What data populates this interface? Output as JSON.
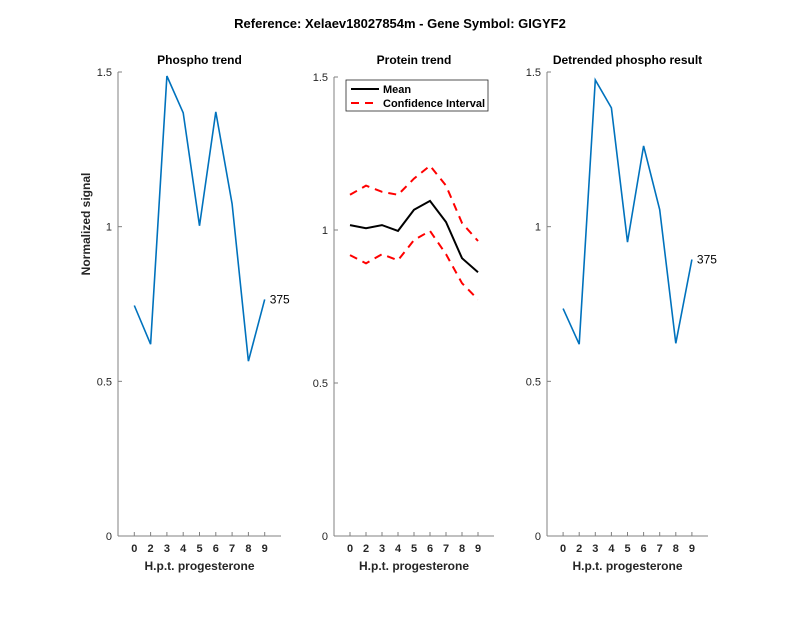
{
  "figure_title": "Reference:  Xelaev18027854m - Gene Symbol:  GIGYF2",
  "colors": {
    "phospho": "#0072BD",
    "mean": "#000000",
    "ci": "#FF0000",
    "axis": "#808080",
    "text": "#262626"
  },
  "chart_data": [
    {
      "type": "line",
      "title": "Phospho trend",
      "xlabel": "H.p.t. progesterone",
      "ylabel": "Normalized signal",
      "categories": [
        "0",
        "2",
        "3",
        "4",
        "5",
        "6",
        "7",
        "8",
        "9"
      ],
      "ylim": [
        0,
        1.5
      ],
      "yticks": [
        "0",
        "0.5",
        "1",
        "1.5"
      ],
      "series": [
        {
          "name": "phospho",
          "values": [
            0.745,
            0.62,
            1.487,
            1.368,
            1.003,
            1.371,
            1.074,
            0.565,
            0.765
          ]
        }
      ],
      "end_label": "375"
    },
    {
      "type": "line",
      "title": "Protein trend",
      "xlabel": "H.p.t. progesterone",
      "ylabel": "",
      "categories": [
        "0",
        "2",
        "3",
        "4",
        "5",
        "6",
        "7",
        "8",
        "9"
      ],
      "ylim": [
        0,
        1.5
      ],
      "yticks": [
        "0",
        "0.5",
        "1",
        "1.5"
      ],
      "legend": {
        "placement": "top-left",
        "entries": [
          "Mean",
          "Confidence Interval"
        ]
      },
      "series": [
        {
          "name": "Mean",
          "values": [
            1.016,
            1.006,
            1.016,
            0.997,
            1.066,
            1.095,
            1.026,
            0.908,
            0.862
          ]
        },
        {
          "name": "Confidence Interval (upper)",
          "values": [
            1.115,
            1.145,
            1.125,
            1.115,
            1.168,
            1.21,
            1.145,
            1.023,
            0.964
          ]
        },
        {
          "name": "Confidence Interval (lower)",
          "values": [
            0.918,
            0.891,
            0.921,
            0.901,
            0.967,
            0.997,
            0.921,
            0.826,
            0.773
          ]
        }
      ]
    },
    {
      "type": "line",
      "title": "Detrended phospho result",
      "xlabel": "H.p.t. progesterone",
      "ylabel": "",
      "categories": [
        "0",
        "2",
        "3",
        "4",
        "5",
        "6",
        "7",
        "8",
        "9"
      ],
      "ylim": [
        0,
        1.5
      ],
      "yticks": [
        "0",
        "0.5",
        "1",
        "1.5"
      ],
      "series": [
        {
          "name": "detrended",
          "values": [
            0.735,
            0.62,
            1.474,
            1.384,
            0.95,
            1.261,
            1.055,
            0.623,
            0.894
          ]
        }
      ],
      "end_label": "375"
    }
  ]
}
